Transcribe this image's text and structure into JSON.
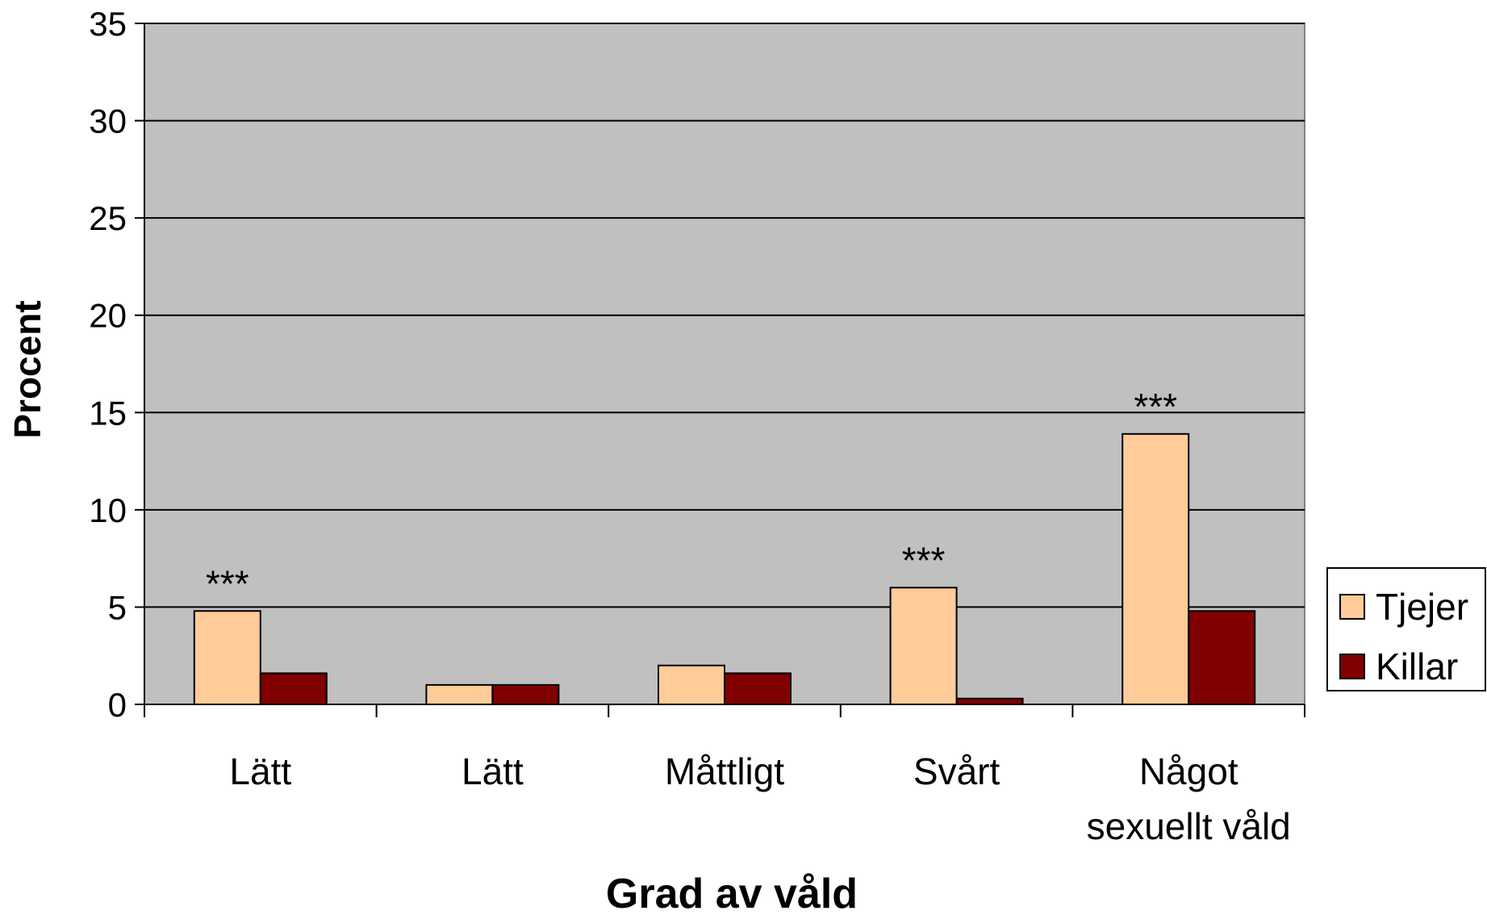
{
  "chart_data": {
    "type": "bar",
    "x_label": "Grad av våld",
    "y_label": "Procent",
    "categories": [
      "Lätt",
      "Lätt",
      "Måttligt",
      "Svårt",
      "Något\nsexuellt våld"
    ],
    "series": [
      {
        "name": "Tjejer",
        "color": "#FFCC99",
        "values": [
          4.8,
          1.0,
          2.0,
          6.0,
          13.9
        ]
      },
      {
        "name": "Killar",
        "color": "#800000",
        "values": [
          1.6,
          1.0,
          1.6,
          0.3,
          4.8
        ]
      }
    ],
    "annotations": [
      "***",
      null,
      null,
      "***",
      "***"
    ],
    "ylim": [
      0,
      35
    ],
    "yticks": [
      0,
      5,
      10,
      15,
      20,
      25,
      30,
      35
    ],
    "grid": true,
    "plot_background": "#C0C0C0",
    "legend": "right"
  }
}
